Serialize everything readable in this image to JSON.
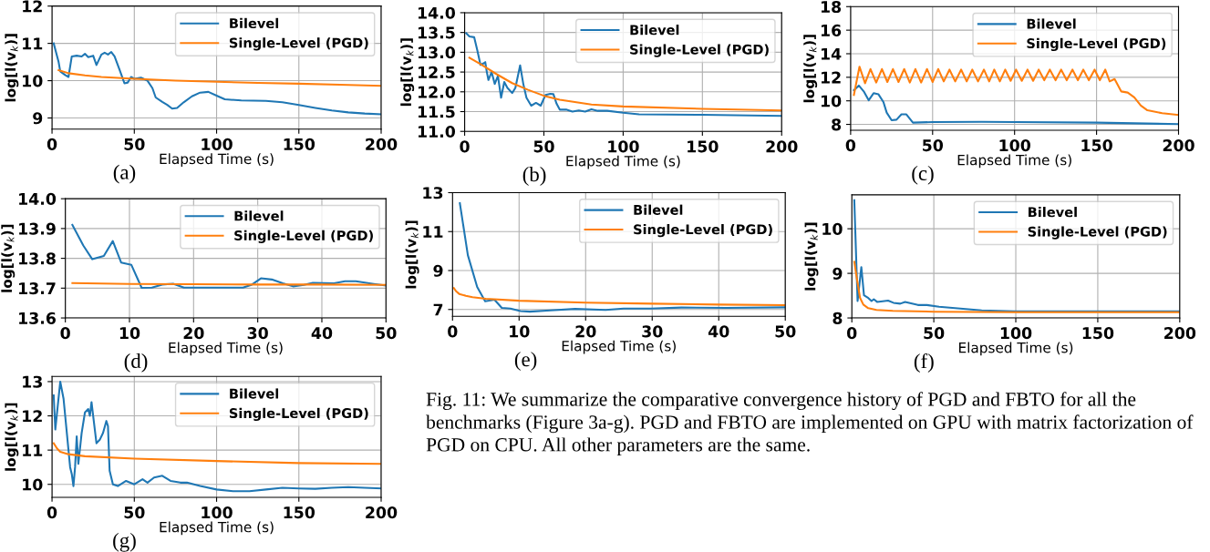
{
  "chart_data": [
    {
      "type": "line",
      "xlabel": "Elapsed Time (s)",
      "ylabel": "log[l(v$_{k}$)]",
      "annotations": [
        "(a)"
      ],
      "xlim": [
        0,
        200
      ],
      "ylim": [
        8.7,
        12
      ],
      "xticks": [
        0,
        50,
        100,
        150,
        200
      ],
      "yticks": [
        9,
        10,
        11,
        12
      ],
      "grid": true,
      "legend": "top right",
      "series": [
        {
          "name": "Bilevel",
          "color": "#1f77b4",
          "x": [
            1,
            4,
            5,
            8,
            10,
            12,
            15,
            18,
            20,
            22,
            25,
            27,
            30,
            32,
            34,
            36,
            38,
            41,
            44,
            46,
            48,
            50,
            54,
            58,
            61,
            63,
            67,
            70,
            73,
            76,
            80,
            85,
            90,
            95,
            100,
            105,
            115,
            130,
            140,
            150,
            160,
            170,
            180,
            190,
            200
          ],
          "values": [
            11.0,
            10.5,
            10.25,
            10.15,
            10.1,
            10.65,
            10.67,
            10.65,
            10.72,
            10.63,
            10.67,
            10.42,
            10.7,
            10.75,
            10.7,
            10.77,
            10.65,
            10.3,
            9.93,
            9.95,
            10.1,
            10.05,
            10.08,
            10.0,
            9.8,
            9.55,
            9.43,
            9.35,
            9.25,
            9.27,
            9.42,
            9.58,
            9.68,
            9.7,
            9.6,
            9.5,
            9.47,
            9.46,
            9.42,
            9.35,
            9.27,
            9.2,
            9.15,
            9.12,
            9.1
          ]
        },
        {
          "name": "Single-Level (PGD)",
          "color": "#ff7f0e",
          "x": [
            4,
            10,
            20,
            30,
            50,
            75,
            100,
            125,
            150,
            175,
            200
          ],
          "values": [
            10.28,
            10.2,
            10.14,
            10.1,
            10.05,
            10.0,
            9.97,
            9.94,
            9.92,
            9.89,
            9.86
          ]
        }
      ]
    },
    {
      "type": "line",
      "xlabel": "Elapsed Time (s)",
      "ylabel": "log[l(v$_{k}$)]",
      "annotations": [
        "(b)"
      ],
      "xlim": [
        0,
        200
      ],
      "ylim": [
        11,
        14
      ],
      "xticks": [
        0,
        50,
        100,
        150,
        200
      ],
      "yticks": [
        {
          "value": 11,
          "label": "11.0"
        },
        11.5,
        {
          "value": 12,
          "label": "12.0"
        },
        12.5,
        {
          "value": 13,
          "label": "13.0"
        },
        13.5,
        {
          "value": 14,
          "label": "14.0"
        }
      ],
      "grid": true,
      "legend": "top right",
      "series": [
        {
          "name": "Bilevel",
          "color": "#1f77b4",
          "x": [
            1,
            3,
            6,
            8,
            10,
            12,
            13,
            14,
            15,
            17,
            19,
            21,
            23,
            25,
            27,
            30,
            32,
            35,
            37,
            39,
            42,
            45,
            48,
            51,
            54,
            56,
            58,
            60,
            64,
            68,
            72,
            76,
            80,
            84,
            90,
            100,
            110,
            150,
            200
          ],
          "values": [
            13.48,
            13.4,
            13.38,
            13.05,
            12.68,
            12.72,
            12.75,
            12.5,
            12.3,
            12.5,
            12.2,
            12.4,
            11.85,
            12.25,
            12.1,
            11.97,
            12.1,
            12.67,
            12.2,
            11.85,
            11.65,
            11.72,
            11.65,
            11.92,
            11.95,
            11.94,
            11.7,
            11.55,
            11.55,
            11.5,
            11.53,
            11.5,
            11.56,
            11.52,
            11.52,
            11.47,
            11.43,
            11.42,
            11.39
          ]
        },
        {
          "name": "Single-Level (PGD)",
          "color": "#ff7f0e",
          "x": [
            3,
            10,
            20,
            30,
            40,
            50,
            60,
            80,
            100,
            150,
            200
          ],
          "values": [
            12.86,
            12.7,
            12.45,
            12.22,
            12.05,
            11.9,
            11.8,
            11.68,
            11.63,
            11.57,
            11.53
          ]
        }
      ]
    },
    {
      "type": "line",
      "xlabel": "Elapsed Time (s)",
      "ylabel": "log[l(v$_{k}$)]",
      "annotations": [
        "(c)"
      ],
      "xlim": [
        0,
        200
      ],
      "ylim": [
        7.5,
        18
      ],
      "xticks": [
        0,
        50,
        100,
        150,
        200
      ],
      "yticks": [
        8,
        10,
        12,
        14,
        16,
        18
      ],
      "grid": true,
      "legend": "top right",
      "series": [
        {
          "name": "Bilevel",
          "color": "#1f77b4",
          "x": [
            2,
            5,
            8,
            11,
            14,
            17,
            20,
            22,
            25,
            28,
            31,
            34,
            38,
            50,
            80,
            100,
            150,
            200
          ],
          "values": [
            10.9,
            11.3,
            10.8,
            10.05,
            10.65,
            10.55,
            9.9,
            9.0,
            8.35,
            8.4,
            8.85,
            8.85,
            8.15,
            8.2,
            8.22,
            8.2,
            8.15,
            8.02
          ]
        },
        {
          "name": "Single-Level (PGD)",
          "color": "#ff7f0e",
          "x": [
            2,
            5.4,
            8.8,
            12.1,
            15.6,
            19.1,
            22.4,
            25.8,
            29.2,
            32.7,
            36.1,
            39.5,
            43.0,
            46.6,
            50.0,
            53.4,
            56.8,
            60.3,
            63.8,
            67.4,
            70.8,
            74.2,
            77.7,
            81.3,
            84.5,
            87.6,
            91.0,
            94.3,
            97.6,
            100.9,
            104.4,
            107.9,
            111.3,
            114.7,
            118.1,
            121.5,
            125.0,
            128.4,
            131.8,
            135.3,
            138.6,
            141.9,
            145.3,
            148.8,
            152.0,
            155.3,
            158,
            161,
            165,
            169,
            173,
            177,
            181,
            190,
            200
          ],
          "values": [
            10.5,
            12.9,
            11.5,
            12.7,
            11.55,
            12.7,
            11.6,
            12.7,
            11.6,
            12.7,
            11.55,
            12.7,
            11.55,
            12.7,
            11.6,
            12.7,
            11.65,
            12.65,
            11.65,
            12.65,
            11.65,
            12.65,
            11.65,
            12.65,
            11.65,
            12.65,
            11.65,
            12.65,
            11.7,
            12.65,
            11.7,
            12.65,
            11.7,
            12.65,
            11.75,
            12.65,
            11.75,
            12.65,
            11.75,
            12.65,
            11.75,
            12.65,
            11.75,
            12.65,
            11.75,
            12.65,
            11.65,
            11.85,
            10.8,
            10.7,
            10.3,
            9.6,
            9.2,
            8.95,
            8.8
          ]
        }
      ]
    },
    {
      "type": "line",
      "xlabel": "Elapsed Time (s)",
      "ylabel": "log[l(v$_{k}$)]",
      "annotations": [
        "(d)"
      ],
      "xlim": [
        0,
        50
      ],
      "ylim": [
        13.6,
        14.0
      ],
      "xticks": [
        0,
        10,
        20,
        30,
        40,
        50
      ],
      "yticks": [
        13.6,
        13.7,
        13.8,
        13.9,
        {
          "value": 14.0,
          "label": "14.0"
        }
      ],
      "grid": true,
      "legend": "top right",
      "series": [
        {
          "name": "Bilevel",
          "color": "#1f77b4",
          "x": [
            1.1,
            2.8,
            4.2,
            6.0,
            7.4,
            8.7,
            10.3,
            11.9,
            13.5,
            15.1,
            16.8,
            18.5,
            27.7,
            29.1,
            30.5,
            32.2,
            33.9,
            35.5,
            37.2,
            38.6,
            41.9,
            43.6,
            45.3,
            48.1,
            49.9
          ],
          "values": [
            13.912,
            13.843,
            13.797,
            13.808,
            13.858,
            13.786,
            13.778,
            13.701,
            13.702,
            13.712,
            13.715,
            13.702,
            13.702,
            13.712,
            13.733,
            13.729,
            13.716,
            13.706,
            13.711,
            13.718,
            13.716,
            13.723,
            13.723,
            13.714,
            13.709
          ]
        },
        {
          "name": "Single-Level (PGD)",
          "color": "#ff7f0e",
          "x": [
            1.1,
            10,
            20,
            30,
            40,
            50
          ],
          "values": [
            13.717,
            13.714,
            13.713,
            13.712,
            13.712,
            13.711
          ]
        }
      ]
    },
    {
      "type": "line",
      "xlabel": "Elapsed Time (s)",
      "ylabel": "log[l(v$_{k}$)]",
      "annotations": [
        "(e)"
      ],
      "xlim": [
        0,
        50
      ],
      "ylim": [
        6.65,
        13
      ],
      "xticks": [
        0,
        10,
        20,
        30,
        40,
        50
      ],
      "yticks": [
        7,
        9,
        11,
        13
      ],
      "grid": true,
      "legend": "top right",
      "series": [
        {
          "name": "Bilevel",
          "color": "#1f77b4",
          "x": [
            1.1,
            2.3,
            3.7,
            4.9,
            6.3,
            7.4,
            8.7,
            10.2,
            11.6,
            14.7,
            18.4,
            23,
            25.7,
            29.8,
            34.4,
            41.2,
            50
          ],
          "values": [
            12.46,
            9.79,
            8.16,
            7.42,
            7.5,
            7.08,
            7.05,
            6.92,
            6.89,
            6.95,
            7.03,
            6.98,
            7.05,
            7.05,
            7.1,
            7.08,
            7.11
          ]
        },
        {
          "name": "Single-Level (PGD)",
          "color": "#ff7f0e",
          "x": [
            0.2,
            0.5,
            1,
            2,
            3,
            5,
            10,
            20,
            30,
            40,
            50
          ],
          "values": [
            8.1,
            7.95,
            7.8,
            7.7,
            7.63,
            7.55,
            7.45,
            7.35,
            7.3,
            7.25,
            7.22
          ]
        }
      ]
    },
    {
      "type": "line",
      "xlabel": "Elapsed Time (s)",
      "ylabel": "log[l(v$_{k}$)]",
      "annotations": [
        "(f)"
      ],
      "xlim": [
        0,
        200
      ],
      "ylim": [
        8,
        10.76
      ],
      "xticks": [
        0,
        50,
        100,
        150,
        200
      ],
      "yticks": [
        8,
        9,
        10
      ],
      "grid": true,
      "legend": "top right",
      "series": [
        {
          "name": "Bilevel",
          "color": "#1f77b4",
          "x": [
            1.5,
            3.5,
            5.8,
            7.4,
            9.6,
            12,
            13.4,
            15.4,
            19.9,
            22.1,
            25.4,
            29.5,
            32.5,
            40.3,
            45.8,
            53.2,
            66.2,
            79.2,
            99.6,
            200
          ],
          "values": [
            10.64,
            8.38,
            9.14,
            8.51,
            8.46,
            8.38,
            8.42,
            8.36,
            8.38,
            8.39,
            8.34,
            8.32,
            8.36,
            8.29,
            8.29,
            8.25,
            8.21,
            8.17,
            8.15,
            8.15
          ]
        },
        {
          "name": "Single-Level (PGD)",
          "color": "#ff7f0e",
          "x": [
            1.5,
            3,
            5,
            7,
            10,
            15,
            25,
            50,
            100,
            200
          ],
          "values": [
            9.26,
            8.9,
            8.45,
            8.3,
            8.22,
            8.18,
            8.16,
            8.14,
            8.13,
            8.13
          ]
        }
      ]
    },
    {
      "type": "line",
      "xlabel": "Elapsed Time (s)",
      "ylabel": "log[l(v$_{k}$)]",
      "annotations": [
        "(g)"
      ],
      "xlim": [
        0,
        200
      ],
      "ylim": [
        9.62,
        13.15
      ],
      "xticks": [
        0,
        50,
        100,
        150,
        200
      ],
      "yticks": [
        10,
        11,
        12,
        13
      ],
      "grid": true,
      "legend": "top right",
      "series": [
        {
          "name": "Bilevel",
          "color": "#1f77b4",
          "x": [
            1,
            2,
            5,
            7,
            9,
            11,
            12,
            13,
            14,
            15,
            16,
            18,
            20,
            22,
            23,
            24,
            25,
            27,
            29,
            31,
            33,
            34,
            35,
            37,
            40,
            45,
            50,
            55,
            58,
            62,
            67,
            72,
            78,
            82,
            90,
            100,
            110,
            120,
            130,
            140,
            150,
            160,
            170,
            180,
            190,
            200
          ],
          "values": [
            12.6,
            11.6,
            13.0,
            12.5,
            11.5,
            10.5,
            10.3,
            9.95,
            10.5,
            11.4,
            10.6,
            11.5,
            12.1,
            12.2,
            12.0,
            12.4,
            12.0,
            11.2,
            11.3,
            11.5,
            11.85,
            11.7,
            10.4,
            10.0,
            9.95,
            10.1,
            10.0,
            10.15,
            10.05,
            10.2,
            10.25,
            10.1,
            10.05,
            10.05,
            9.95,
            9.85,
            9.8,
            9.8,
            9.85,
            9.9,
            9.88,
            9.87,
            9.9,
            9.92,
            9.9,
            9.88
          ]
        },
        {
          "name": "Single-Level (PGD)",
          "color": "#ff7f0e",
          "x": [
            1,
            3,
            5,
            10,
            20,
            50,
            100,
            150,
            200
          ],
          "values": [
            11.2,
            11.05,
            10.95,
            10.88,
            10.82,
            10.75,
            10.68,
            10.62,
            10.6
          ]
        }
      ]
    },
    {
      "type": "other",
      "annotations": [
        "Fig. 11: We summarize the comparative convergence history of PGD and FBTO for all the benchmarks (Figure 3a-g). PGD and FBTO are implemented on GPU with matrix factorization of PGD on CPU. All other parameters are the same."
      ]
    }
  ]
}
